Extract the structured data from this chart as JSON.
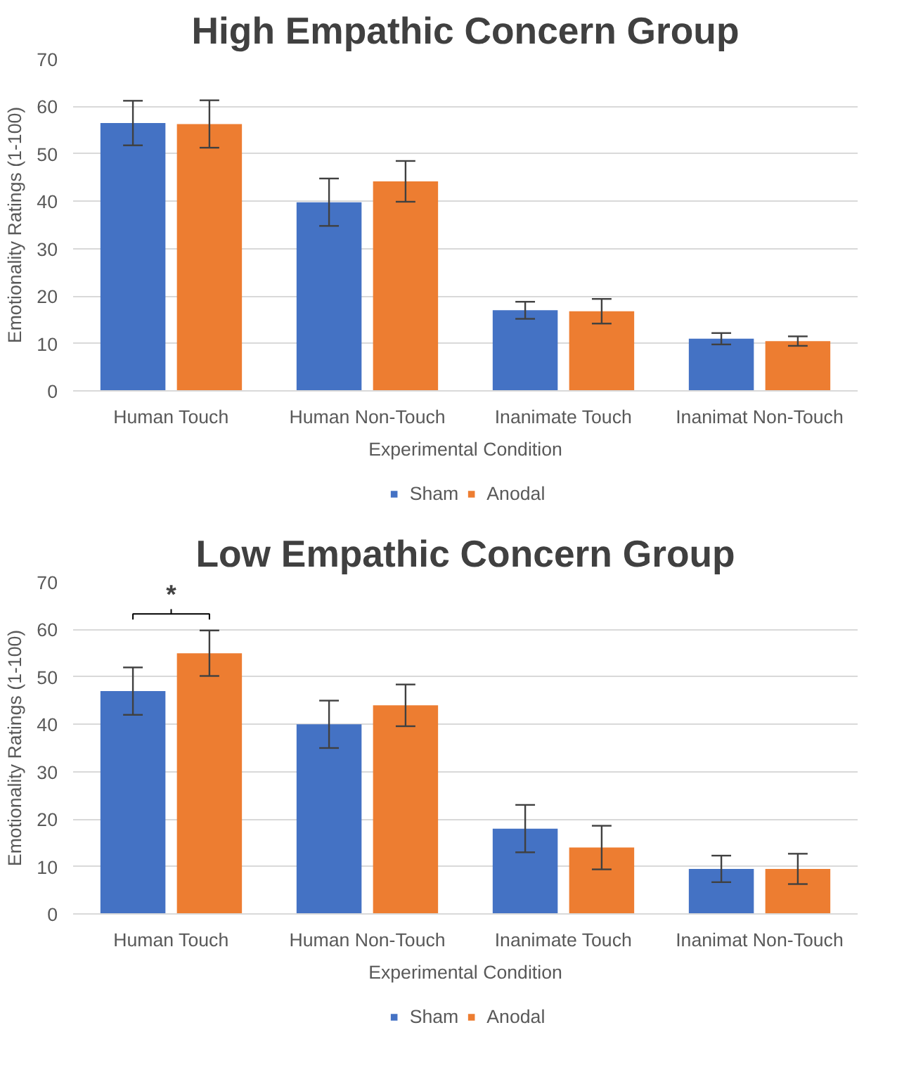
{
  "chart_data": [
    {
      "type": "bar",
      "title": "High Empathic Concern Group",
      "xlabel": "Experimental Condition",
      "ylabel": "Emotionality Ratings (1-100)",
      "categories": [
        "Human Touch",
        "Human Non-Touch",
        "Inanimate Touch",
        "Inanimat Non-Touch"
      ],
      "series": [
        {
          "name": "Sham",
          "color": "#4472c4",
          "values": [
            56.5,
            39.8,
            17,
            11
          ],
          "errors": [
            4.7,
            5,
            1.8,
            1.2
          ]
        },
        {
          "name": "Anodal",
          "color": "#ed7d31",
          "values": [
            56.3,
            44.2,
            16.8,
            10.5
          ],
          "errors": [
            5,
            4.3,
            2.6,
            1
          ]
        }
      ],
      "ylim": [
        0,
        70
      ],
      "yticks": [
        0,
        10,
        20,
        30,
        40,
        50,
        60,
        70
      ],
      "grid": "y",
      "legend": "bottom"
    },
    {
      "type": "bar",
      "title": "Low Empathic Concern Group",
      "xlabel": "Experimental Condition",
      "ylabel": "Emotionality Ratings (1-100)",
      "categories": [
        "Human Touch",
        "Human Non-Touch",
        "Inanimate Touch",
        "Inanimat Non-Touch"
      ],
      "series": [
        {
          "name": "Sham",
          "color": "#4472c4",
          "values": [
            47,
            40,
            18,
            9.5
          ],
          "errors": [
            5,
            5,
            5,
            2.8
          ]
        },
        {
          "name": "Anodal",
          "color": "#ed7d31",
          "values": [
            55,
            44,
            14,
            9.5
          ],
          "errors": [
            4.8,
            4.4,
            4.6,
            3.2
          ]
        }
      ],
      "annotations": [
        "*"
      ],
      "ylim": [
        0,
        70
      ],
      "yticks": [
        0,
        10,
        20,
        30,
        40,
        50,
        60,
        70
      ],
      "grid": "y",
      "legend": "bottom"
    }
  ]
}
